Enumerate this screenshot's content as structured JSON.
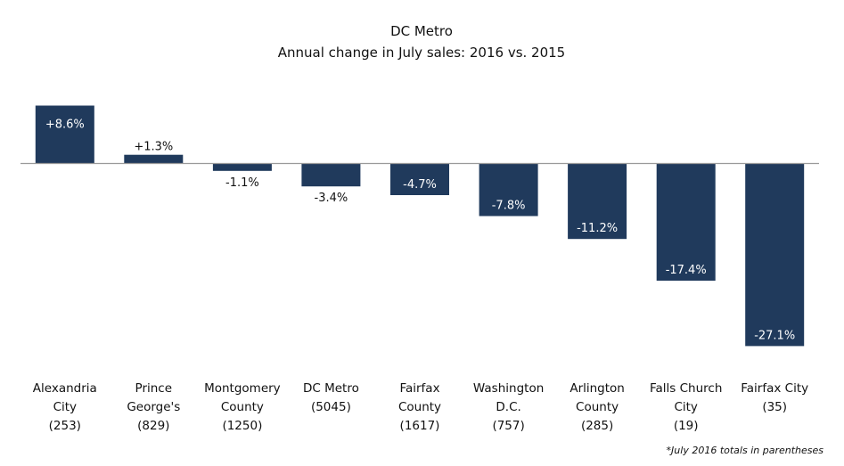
{
  "chart_data": {
    "type": "bar",
    "title": "DC Metro",
    "subtitle": "Annual change in July sales: 2016 vs. 2015",
    "categories": [
      [
        "Alexandria",
        "City",
        "(253)"
      ],
      [
        "Prince",
        "George's",
        "(829)"
      ],
      [
        "Montgomery",
        "County",
        "(1250)"
      ],
      [
        "DC Metro",
        "(5045)"
      ],
      [
        "Fairfax",
        "County",
        "(1617)"
      ],
      [
        "Washington",
        "D.C.",
        "(757)"
      ],
      [
        "Arlington",
        "County",
        "(285)"
      ],
      [
        "Falls Church",
        "City",
        "(19)"
      ],
      [
        "Fairfax City",
        "(35)"
      ]
    ],
    "values": [
      8.6,
      1.3,
      -1.1,
      -3.4,
      -4.7,
      -7.8,
      -11.2,
      -17.4,
      -27.1
    ],
    "value_labels": [
      "+8.6%",
      "+1.3%",
      "-1.1%",
      "-3.4%",
      "-4.7%",
      "-7.8%",
      "-11.2%",
      "-17.4%",
      "-27.1%"
    ],
    "ylim": [
      -27.1,
      8.6
    ],
    "bar_color": "#203a5c",
    "footnote": "*July 2016 totals in parentheses",
    "grid": false,
    "legend": "none"
  }
}
